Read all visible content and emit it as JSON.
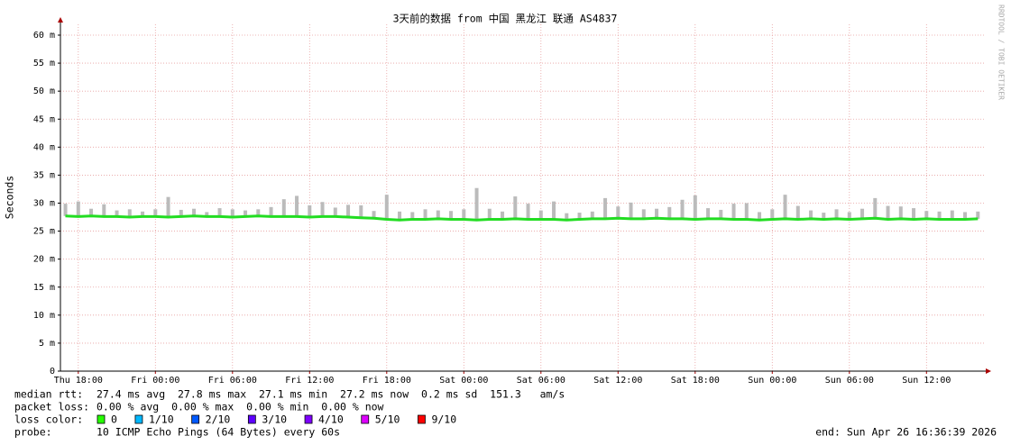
{
  "chart_data": {
    "type": "line",
    "title": "3天前的数据 from 中国 黑龙江 联通 AS4837",
    "y_label": "Seconds",
    "watermark": "RRDTOOL / TOBI OETIKER",
    "x": [
      "2026-04-23T17:00",
      "2026-04-23T18:00",
      "2026-04-23T19:00",
      "2026-04-23T20:00",
      "2026-04-23T21:00",
      "2026-04-23T22:00",
      "2026-04-23T23:00",
      "2026-04-24T00:00",
      "2026-04-24T01:00",
      "2026-04-24T02:00",
      "2026-04-24T03:00",
      "2026-04-24T04:00",
      "2026-04-24T05:00",
      "2026-04-24T06:00",
      "2026-04-24T07:00",
      "2026-04-24T08:00",
      "2026-04-24T09:00",
      "2026-04-24T10:00",
      "2026-04-24T11:00",
      "2026-04-24T12:00",
      "2026-04-24T13:00",
      "2026-04-24T14:00",
      "2026-04-24T15:00",
      "2026-04-24T16:00",
      "2026-04-24T17:00",
      "2026-04-24T18:00",
      "2026-04-24T19:00",
      "2026-04-24T20:00",
      "2026-04-24T21:00",
      "2026-04-24T22:00",
      "2026-04-24T23:00",
      "2026-04-25T00:00",
      "2026-04-25T01:00",
      "2026-04-25T02:00",
      "2026-04-25T03:00",
      "2026-04-25T04:00",
      "2026-04-25T05:00",
      "2026-04-25T06:00",
      "2026-04-25T07:00",
      "2026-04-25T08:00",
      "2026-04-25T09:00",
      "2026-04-25T10:00",
      "2026-04-25T11:00",
      "2026-04-25T12:00",
      "2026-04-25T13:00",
      "2026-04-25T14:00",
      "2026-04-25T15:00",
      "2026-04-25T16:00",
      "2026-04-25T17:00",
      "2026-04-25T18:00",
      "2026-04-25T19:00",
      "2026-04-25T20:00",
      "2026-04-25T21:00",
      "2026-04-25T22:00",
      "2026-04-25T23:00",
      "2026-04-26T00:00",
      "2026-04-26T01:00",
      "2026-04-26T02:00",
      "2026-04-26T03:00",
      "2026-04-26T04:00",
      "2026-04-26T05:00",
      "2026-04-26T06:00",
      "2026-04-26T07:00",
      "2026-04-26T08:00",
      "2026-04-26T09:00",
      "2026-04-26T10:00",
      "2026-04-26T11:00",
      "2026-04-26T12:00",
      "2026-04-26T13:00",
      "2026-04-26T14:00",
      "2026-04-26T15:00",
      "2026-04-26T16:00"
    ],
    "series": [
      {
        "name": "median rtt:",
        "color": "#22dd22",
        "values": [
          27.7,
          27.6,
          27.7,
          27.6,
          27.6,
          27.5,
          27.6,
          27.6,
          27.5,
          27.6,
          27.7,
          27.6,
          27.6,
          27.5,
          27.6,
          27.7,
          27.6,
          27.6,
          27.6,
          27.5,
          27.6,
          27.6,
          27.5,
          27.4,
          27.3,
          27.1,
          27.0,
          27.1,
          27.1,
          27.2,
          27.1,
          27.1,
          27.0,
          27.1,
          27.1,
          27.2,
          27.1,
          27.1,
          27.1,
          27.0,
          27.1,
          27.2,
          27.2,
          27.3,
          27.2,
          27.2,
          27.3,
          27.2,
          27.2,
          27.1,
          27.2,
          27.2,
          27.1,
          27.1,
          27.0,
          27.1,
          27.2,
          27.1,
          27.2,
          27.1,
          27.2,
          27.1,
          27.2,
          27.3,
          27.1,
          27.2,
          27.1,
          27.2,
          27.1,
          27.1,
          27.1,
          27.2
        ]
      },
      {
        "color": "#bbbbbb",
        "values": [
          29.9,
          30.3,
          29.0,
          29.8,
          28.7,
          28.9,
          28.5,
          28.9,
          31.1,
          28.8,
          29.0,
          28.4,
          29.1,
          28.9,
          28.7,
          28.9,
          29.3,
          30.7,
          31.3,
          29.6,
          30.2,
          29.2,
          29.7,
          29.6,
          28.6,
          31.5,
          28.5,
          28.4,
          28.9,
          28.7,
          28.6,
          28.9,
          32.7,
          29.0,
          28.5,
          31.2,
          29.9,
          28.7,
          30.3,
          28.2,
          28.3,
          28.5,
          30.9,
          29.4,
          30.1,
          28.9,
          29.0,
          29.3,
          30.6,
          31.4,
          29.1,
          28.8,
          29.9,
          30.0,
          28.4,
          28.9,
          31.5,
          29.5,
          28.7,
          28.3,
          28.9,
          28.4,
          29.0,
          30.9,
          29.5,
          29.4,
          29.1,
          28.6,
          28.5,
          28.7,
          28.4,
          28.5
        ]
      }
    ],
    "xlim": [
      "2026-04-23T16:36:39",
      "2026-04-26T16:36:39"
    ],
    "xticks": [
      {
        "value": "2026-04-23T18:00",
        "label": "Thu 18:00"
      },
      {
        "value": "2026-04-24T00:00",
        "label": "Fri 00:00"
      },
      {
        "value": "2026-04-24T06:00",
        "label": "Fri 06:00"
      },
      {
        "value": "2026-04-24T12:00",
        "label": "Fri 12:00"
      },
      {
        "value": "2026-04-24T18:00",
        "label": "Fri 18:00"
      },
      {
        "value": "2026-04-25T00:00",
        "label": "Sat 00:00"
      },
      {
        "value": "2026-04-25T06:00",
        "label": "Sat 06:00"
      },
      {
        "value": "2026-04-25T12:00",
        "label": "Sat 12:00"
      },
      {
        "value": "2026-04-25T18:00",
        "label": "Sat 18:00"
      },
      {
        "value": "2026-04-26T00:00",
        "label": "Sun 00:00"
      },
      {
        "value": "2026-04-26T06:00",
        "label": "Sun 06:00"
      },
      {
        "value": "2026-04-26T12:00",
        "label": "Sun 12:00"
      }
    ],
    "ylim": [
      0,
      60
    ],
    "yticks": [
      0,
      {
        "value": 5,
        "label": "5 m"
      },
      {
        "value": 10,
        "label": "10 m"
      },
      {
        "value": 15,
        "label": "15 m"
      },
      {
        "value": 20,
        "label": "20 m"
      },
      {
        "value": 25,
        "label": "25 m"
      },
      {
        "value": 30,
        "label": "30 m"
      },
      {
        "value": 35,
        "label": "35 m"
      },
      {
        "value": 40,
        "label": "40 m"
      },
      {
        "value": 45,
        "label": "45 m"
      },
      {
        "value": 50,
        "label": "50 m"
      },
      {
        "value": 55,
        "label": "55 m"
      },
      {
        "value": 60,
        "label": "60 m"
      }
    ],
    "grid": true,
    "stats": [
      {
        "label": "median rtt:",
        "text": "27.4 ms avg  27.8 ms max  27.1 ms min  27.2 ms now  0.2 ms sd  151.3   am/s"
      },
      {
        "label": "packet loss:",
        "text": "0.00 % avg  0.00 % max  0.00 % min  0.00 % now"
      }
    ],
    "loss_label": "loss color:",
    "loss_colors": [
      {
        "label": "0",
        "color": "#26ff00"
      },
      {
        "label": "1/10",
        "color": "#00b8ff"
      },
      {
        "label": "2/10",
        "color": "#0059ff"
      },
      {
        "label": "3/10",
        "color": "#5e00ff"
      },
      {
        "label": "4/10",
        "color": "#7e00ff"
      },
      {
        "label": "5/10",
        "color": "#dd00ff"
      },
      {
        "label": "9/10",
        "color": "#ff0000"
      }
    ],
    "probe_label": "probe:",
    "probe": "10 ICMP Echo Pings (64 Bytes) every 60s",
    "end": "end: Sun Apr 26 16:36:39 2026"
  }
}
